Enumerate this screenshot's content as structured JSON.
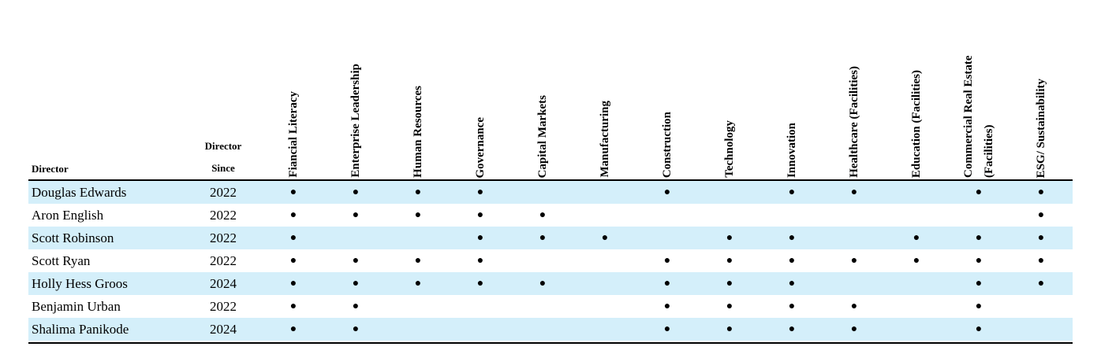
{
  "table": {
    "header": {
      "director": "Director",
      "since": "Director Since",
      "skills": [
        "Fiancial Literacy",
        "Enterprise Leadership",
        "Human Resources",
        "Governance",
        "Capital Markets",
        "Manufacturing",
        "Construction",
        "Technology",
        "Innovation",
        "Healthcare (Facilities)",
        "Education (Facilities)",
        "Commercial Real Estate (Facilities)",
        "ESG/ Sustainability"
      ]
    },
    "rows": [
      {
        "director": "Douglas Edwards",
        "since": "2022",
        "skills": [
          "●",
          "●",
          "●",
          "●",
          "",
          "",
          "●",
          "",
          "●",
          "●",
          "",
          "●",
          "●"
        ]
      },
      {
        "director": "Aron English",
        "since": "2022",
        "skills": [
          "●",
          "●",
          "●",
          "●",
          "●",
          "",
          "",
          "",
          "",
          "",
          "",
          "",
          "●"
        ]
      },
      {
        "director": "Scott Robinson",
        "since": "2022",
        "skills": [
          "●",
          "",
          "",
          "●",
          "●",
          "●",
          "",
          "●",
          "●",
          "",
          "●",
          "●",
          "●"
        ]
      },
      {
        "director": "Scott Ryan",
        "since": "2022",
        "skills": [
          "●",
          "●",
          "●",
          "●",
          "",
          "",
          "●",
          "●",
          "●",
          "●",
          "●",
          "●",
          "●"
        ]
      },
      {
        "director": "Holly Hess Groos",
        "since": "2024",
        "skills": [
          "●",
          "●",
          "●",
          "●",
          "●",
          "",
          "●",
          "●",
          "●",
          "",
          "",
          "●",
          "●"
        ]
      },
      {
        "director": "Benjamin Urban",
        "since": "2022",
        "skills": [
          "●",
          "●",
          "",
          "",
          "",
          "",
          "●",
          "●",
          "●",
          "●",
          "",
          "●",
          ""
        ]
      },
      {
        "director": "Shalima Panikode",
        "since": "2024",
        "skills": [
          "●",
          "●",
          "",
          "",
          "",
          "",
          "●",
          "●",
          "●",
          "●",
          "",
          "●",
          ""
        ]
      }
    ]
  }
}
